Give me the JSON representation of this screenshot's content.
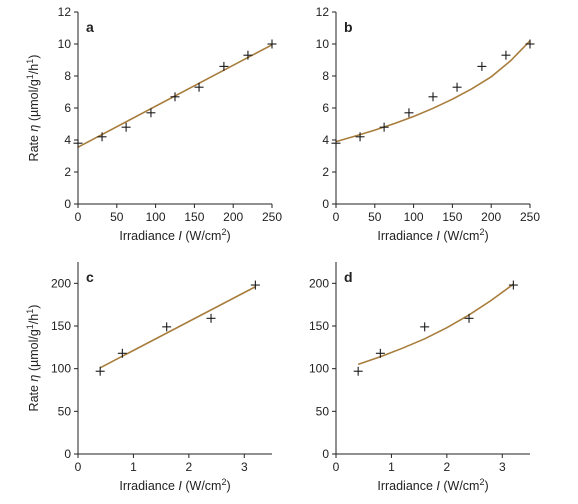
{
  "colors": {
    "fit": "#a87d3c",
    "axis": "#222222",
    "marker": "#1a1a1a"
  },
  "chart_data": [
    {
      "panel": "a",
      "type": "scatter",
      "x": [
        0,
        31,
        62,
        94,
        125,
        156,
        188,
        219,
        250
      ],
      "y": [
        3.8,
        4.2,
        4.8,
        5.7,
        6.7,
        7.3,
        8.6,
        9.3,
        10.0
      ],
      "fit": {
        "kind": "linear",
        "x": [
          0,
          250
        ],
        "y": [
          3.55,
          9.95
        ]
      },
      "xlim": [
        0,
        250
      ],
      "ylim": [
        0,
        12
      ],
      "xticks": [
        0,
        50,
        100,
        150,
        200,
        250
      ],
      "yticks": [
        0,
        2,
        4,
        6,
        8,
        10,
        12
      ],
      "xlabel": "Irradiance I (W/cm2)",
      "xlabel_parts": [
        "Irradiance ",
        "I",
        " (W/cm",
        "2",
        ")"
      ],
      "ylabel": "Rate η (µmol/g1/h1)",
      "ylabel_parts": [
        "Rate ",
        "η",
        " (µmol/g",
        "1",
        "/h",
        "1",
        ")"
      ]
    },
    {
      "panel": "b",
      "type": "scatter",
      "x": [
        0,
        31,
        62,
        94,
        125,
        156,
        188,
        219,
        250
      ],
      "y": [
        3.8,
        4.2,
        4.8,
        5.7,
        6.7,
        7.3,
        8.6,
        9.3,
        10.0
      ],
      "fit": {
        "kind": "curve",
        "x": [
          0,
          25,
          50,
          75,
          100,
          125,
          150,
          175,
          200,
          225,
          250
        ],
        "y": [
          3.9,
          4.25,
          4.62,
          5.02,
          5.47,
          5.98,
          6.55,
          7.2,
          7.95,
          8.95,
          10.2
        ]
      },
      "xlim": [
        0,
        250
      ],
      "ylim": [
        0,
        12
      ],
      "xticks": [
        0,
        50,
        100,
        150,
        200,
        250
      ],
      "yticks": [
        0,
        2,
        4,
        6,
        8,
        10,
        12
      ],
      "xlabel": "Irradiance I (W/cm2)",
      "xlabel_parts": [
        "Irradiance ",
        "I",
        " (W/cm",
        "2",
        ")"
      ],
      "ylabel": ""
    },
    {
      "panel": "c",
      "type": "scatter",
      "x": [
        0.4,
        0.8,
        1.6,
        2.4,
        3.2
      ],
      "y": [
        97,
        118,
        149,
        159,
        198
      ],
      "fit": {
        "kind": "linear",
        "x": [
          0.4,
          3.2
        ],
        "y": [
          101,
          196
        ]
      },
      "xlim": [
        0,
        3.5
      ],
      "ylim": [
        0,
        225
      ],
      "xticks": [
        0,
        1,
        2,
        3
      ],
      "yticks": [
        0,
        50,
        100,
        150,
        200
      ],
      "xlabel": "Irradiance I (W/cm2)",
      "xlabel_parts": [
        "Irradiance ",
        "I",
        " (W/cm",
        "2",
        ")"
      ],
      "ylabel": "Rate η (µmol/g1/h1)",
      "ylabel_parts": [
        "Rate ",
        "η",
        " (µmol/g",
        "1",
        "/h",
        "1",
        ")"
      ]
    },
    {
      "panel": "d",
      "type": "scatter",
      "x": [
        0.4,
        0.8,
        1.6,
        2.4,
        3.2
      ],
      "y": [
        97,
        118,
        149,
        159,
        198
      ],
      "fit": {
        "kind": "curve",
        "x": [
          0.4,
          0.8,
          1.2,
          1.6,
          2.0,
          2.4,
          2.8,
          3.2
        ],
        "y": [
          105,
          114,
          124,
          135,
          148,
          163,
          180,
          199
        ]
      },
      "xlim": [
        0,
        3.5
      ],
      "ylim": [
        0,
        225
      ],
      "xticks": [
        0,
        1,
        2,
        3
      ],
      "yticks": [
        0,
        50,
        100,
        150,
        200
      ],
      "xlabel": "Irradiance I (W/cm2)",
      "xlabel_parts": [
        "Irradiance ",
        "I",
        " (W/cm",
        "2",
        ")"
      ],
      "ylabel": ""
    }
  ]
}
